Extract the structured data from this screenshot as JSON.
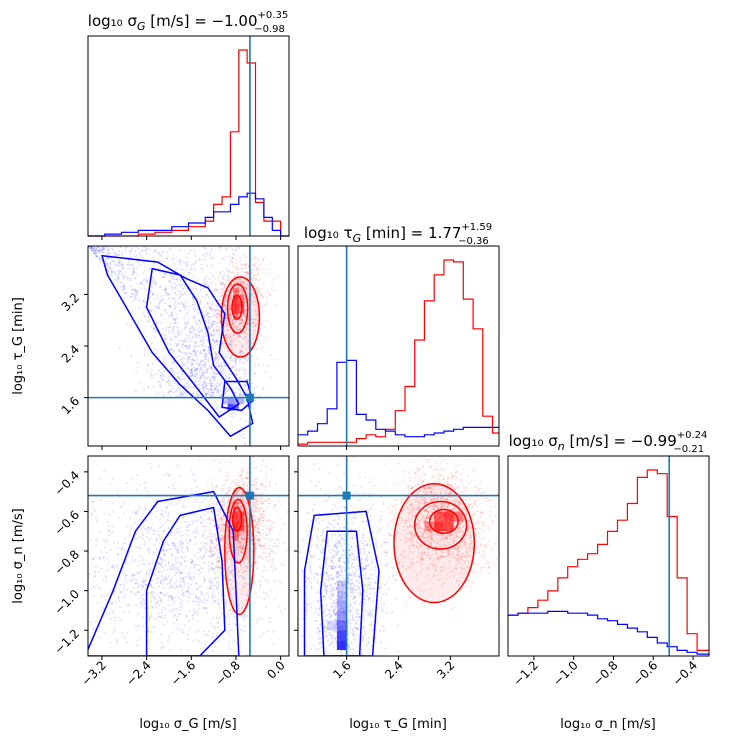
{
  "chart_data": {
    "type": "corner",
    "parameters": [
      {
        "key": "sigG",
        "title": "log₁₀ σ_G [m/s] = −1.00 +0.35 −0.98",
        "title_main": "log₁₀ σ",
        "title_sub": "G",
        "title_tail": " [m/s] = −1.00",
        "title_sup": "+0.35",
        "title_inf": "−0.98",
        "label": "log₁₀ σ_G [m/s]",
        "ticks": [
          -3.2,
          -2.4,
          -1.6,
          -0.8,
          0.0
        ],
        "tick_labels": [
          "−3.2",
          "−2.4",
          "−1.6",
          "−0.8",
          "0.0"
        ],
        "range": [
          -3.45,
          0.15
        ],
        "truth": -0.55
      },
      {
        "key": "tauG",
        "title": "log₁₀ τ_G [min] = 1.77 +1.59 −0.36",
        "title_main": "log₁₀ τ",
        "title_sub": "G",
        "title_tail": " [min] = 1.77",
        "title_sup": "+1.59",
        "title_inf": "−0.36",
        "label": "log₁₀ τ_G [min]",
        "ticks": [
          1.6,
          2.4,
          3.2
        ],
        "tick_labels": [
          "1.6",
          "2.4",
          "3.2"
        ],
        "range": [
          0.85,
          3.95
        ],
        "truth": 1.6
      },
      {
        "key": "sign",
        "title": "log₁₀ σ_n [m/s] = −0.99 +0.24 −0.21",
        "title_main": "log₁₀ σ",
        "title_sub": "n",
        "title_tail": " [m/s] = −0.99",
        "title_sup": "+0.24",
        "title_inf": "−0.21",
        "label": "log₁₀ σ_n [m/s]",
        "ticks": [
          -1.2,
          -1.0,
          -0.8,
          -0.6,
          -0.4
        ],
        "tick_labels": [
          "−1.2",
          "−1.0",
          "−0.8",
          "−0.6",
          "−0.4"
        ],
        "range": [
          -1.33,
          -0.32
        ],
        "truth": -0.52
      }
    ],
    "axis_labels": {
      "x": [
        "log₁₀ σ_G [m/s]",
        "log₁₀ τ_G [min]",
        "log₁₀ σ_n [m/s]"
      ],
      "y": [
        "log₁₀ τ_G [min]",
        "log₁₀ σ_n [m/s]"
      ]
    },
    "series": [
      {
        "colour": "#ff0000"
      },
      {
        "colour": "#0000ff"
      }
    ],
    "truth_colour": "#1f77b4",
    "hist1d": {
      "sigG": {
        "bins": [
          -3.45,
          -3.15,
          -2.85,
          -2.55,
          -2.25,
          -1.95,
          -1.65,
          -1.35,
          -1.2,
          -1.05,
          -0.9,
          -0.75,
          -0.6,
          -0.45,
          -0.3,
          -0.15,
          0.0,
          0.15
        ],
        "red": [
          0.0,
          0.0,
          0.0,
          0.01,
          0.02,
          0.03,
          0.05,
          0.08,
          0.17,
          0.21,
          0.56,
          1.0,
          0.93,
          0.18,
          0.08,
          0.08,
          0.0
        ],
        "blue": [
          0.0,
          0.01,
          0.02,
          0.03,
          0.03,
          0.05,
          0.07,
          0.1,
          0.13,
          0.13,
          0.17,
          0.21,
          0.23,
          0.2,
          0.1,
          0.03,
          0.0
        ]
      },
      "tauG": {
        "bins": [
          0.85,
          1.0,
          1.15,
          1.3,
          1.45,
          1.6,
          1.75,
          1.9,
          2.05,
          2.2,
          2.35,
          2.5,
          2.65,
          2.8,
          2.95,
          3.1,
          3.25,
          3.4,
          3.55,
          3.7,
          3.85,
          3.95
        ],
        "red": [
          0.01,
          0.02,
          0.02,
          0.02,
          0.02,
          0.02,
          0.04,
          0.06,
          0.05,
          0.09,
          0.19,
          0.32,
          0.57,
          0.78,
          0.92,
          1.0,
          0.99,
          0.79,
          0.63,
          0.16,
          0.07
        ],
        "blue": [
          0.06,
          0.08,
          0.12,
          0.2,
          0.45,
          0.46,
          0.17,
          0.14,
          0.09,
          0.08,
          0.06,
          0.05,
          0.05,
          0.06,
          0.07,
          0.08,
          0.09,
          0.1,
          0.1,
          0.1,
          0.1
        ]
      },
      "sign": {
        "bins": [
          -1.33,
          -1.28,
          -1.23,
          -1.18,
          -1.13,
          -1.08,
          -1.03,
          -0.98,
          -0.93,
          -0.88,
          -0.83,
          -0.78,
          -0.73,
          -0.68,
          -0.63,
          -0.58,
          -0.53,
          -0.48,
          -0.43,
          -0.38,
          -0.32
        ],
        "red": [
          0.22,
          0.23,
          0.26,
          0.3,
          0.35,
          0.42,
          0.48,
          0.52,
          0.55,
          0.6,
          0.67,
          0.73,
          0.82,
          0.96,
          1.0,
          0.98,
          0.75,
          0.42,
          0.12,
          0.03
        ],
        "blue": [
          0.22,
          0.23,
          0.23,
          0.23,
          0.24,
          0.24,
          0.23,
          0.23,
          0.22,
          0.2,
          0.19,
          0.17,
          0.15,
          0.13,
          0.1,
          0.07,
          0.05,
          0.03,
          0.02,
          0.01
        ]
      }
    }
  }
}
